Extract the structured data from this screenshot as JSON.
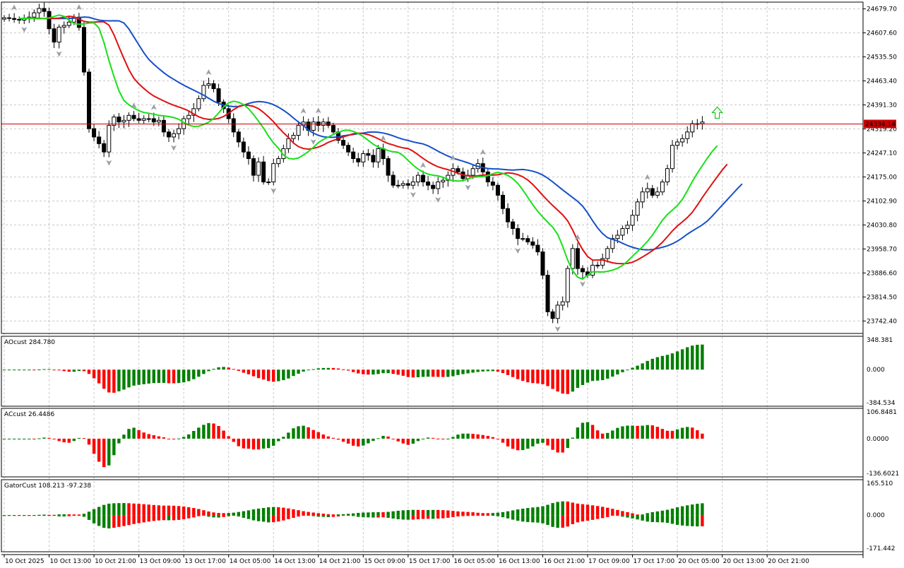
{
  "chart_data": {
    "type": "candlestick",
    "timeframe": "1H",
    "price_axis": {
      "ticks": [
        "24679.70",
        "24607.60",
        "24535.50",
        "24463.40",
        "24391.30",
        "24319.20",
        "24247.10",
        "24175.00",
        "24102.90",
        "24030.80",
        "23958.70",
        "23886.60",
        "23814.50",
        "23742.40"
      ],
      "range": [
        23705,
        24700
      ]
    },
    "current_price": "24334.14",
    "time_labels": [
      "10 Oct 2025",
      "10 Oct 13:00",
      "10 Oct 21:00",
      "13 Oct 09:00",
      "13 Oct 17:00",
      "14 Oct 05:00",
      "14 Oct 13:00",
      "14 Oct 21:00",
      "15 Oct 09:00",
      "15 Oct 17:00",
      "16 Oct 05:00",
      "16 Oct 13:00",
      "16 Oct 21:00",
      "17 Oct 09:00",
      "17 Oct 17:00",
      "20 Oct 05:00",
      "20 Oct 13:00",
      "20 Oct 21:00"
    ],
    "close": [
      24653,
      24651,
      24648,
      24646,
      24650,
      24655,
      24668,
      24681,
      24672,
      24620,
      24580,
      24625,
      24630,
      24640,
      24655,
      24624,
      24490,
      24320,
      24295,
      24275,
      24250,
      24330,
      24355,
      24340,
      24345,
      24360,
      24350,
      24345,
      24350,
      24350,
      24340,
      24345,
      24310,
      24295,
      24305,
      24320,
      24350,
      24360,
      24380,
      24410,
      24450,
      24455,
      24440,
      24400,
      24380,
      24350,
      24310,
      24280,
      24250,
      24230,
      24180,
      24220,
      24160,
      24160,
      24215,
      24230,
      24260,
      24290,
      24300,
      24330,
      24340,
      24315,
      24340,
      24330,
      24340,
      24330,
      24310,
      24285,
      24270,
      24250,
      24230,
      24220,
      24245,
      24240,
      24220,
      24260,
      24230,
      24180,
      24150,
      24150,
      24155,
      24150,
      24160,
      24180,
      24160,
      24150,
      24140,
      24160,
      24165,
      24180,
      24200,
      24190,
      24170,
      24180,
      24200,
      24215,
      24190,
      24160,
      24150,
      24120,
      24080,
      24040,
      24020,
      23990,
      23990,
      23980,
      23970,
      23950,
      23880,
      23770,
      23750,
      23790,
      23800,
      23900,
      23960,
      23900,
      23890,
      23880,
      23910,
      23910,
      23930,
      23960,
      23990,
      24000,
      24020,
      24030,
      24060,
      24100,
      24130,
      24140,
      24120,
      24130,
      24160,
      24200,
      24270,
      24280,
      24290,
      24310,
      24335,
      24335,
      24340
    ],
    "indicators": {
      "jaw_color": "#1550c8",
      "teeth_color": "#e01010",
      "lips_color": "#18e018",
      "up_color": "#007f00",
      "down_color": "#ff0000",
      "fractal_up_color": "#9aa0a6",
      "fractal_down_color": "#9aa0a6",
      "signal_arrow_color": "#18c818",
      "price_line_color": "#cc0000"
    },
    "panels": [
      {
        "name": "AO",
        "label": "AOcust 284.780",
        "max": "348.381",
        "zero": "0.000",
        "min": "-384.534"
      },
      {
        "name": "AC",
        "label": "ACcust 26.4486",
        "max": "106.8481",
        "zero": "0.0000",
        "min": "-136.6021"
      },
      {
        "name": "Gator",
        "label": "GatorCust 108.213 -97.238",
        "max": "165.510",
        "zero": "0.000",
        "min": "-171.442"
      }
    ]
  }
}
